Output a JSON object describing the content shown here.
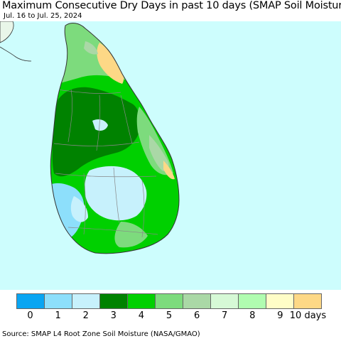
{
  "title": "Maximum Consecutive Dry Days in past 10 days (SMAP Soil Moisture)",
  "subtitle": "Jul. 16 to Jul. 25, 2024",
  "source": "Source: SMAP L4 Root Zone Soil Moisture (NASA/GMAO)",
  "colors": {
    "sea": "#cdfdfd",
    "land_border": "#333333",
    "district_border": "#888888",
    "indian_mainland": "#ffffff"
  },
  "legend": {
    "unit_suffix": "days",
    "ticks": [
      "0",
      "1",
      "2",
      "3",
      "4",
      "5",
      "6",
      "7",
      "8",
      "9",
      "10 days"
    ],
    "bins": [
      {
        "range": "0-1",
        "color": "#0aa5f2"
      },
      {
        "range": "1-2",
        "color": "#8ddffb"
      },
      {
        "range": "2-3",
        "color": "#c7f1fc"
      },
      {
        "range": "3-4",
        "color": "#008200"
      },
      {
        "range": "4-5",
        "color": "#00d000"
      },
      {
        "range": "5-6",
        "color": "#7ddb7d"
      },
      {
        "range": "6-7",
        "color": "#aad8a6"
      },
      {
        "range": "7-8",
        "color": "#d6f9d6"
      },
      {
        "range": "8-9",
        "color": "#b0fcb0"
      },
      {
        "range": "9-10",
        "color": "#fefdc7"
      },
      {
        "range": "10",
        "color": "#fdd886"
      }
    ]
  },
  "map": {
    "region": "Sri Lanka",
    "regions": [
      {
        "id": "north-jaffna",
        "days_bin": "5-6"
      },
      {
        "id": "north-east-coast",
        "days_bin": "10"
      },
      {
        "id": "north-central",
        "days_bin": "3-4"
      },
      {
        "id": "east-coast",
        "days_bin": "5-6"
      },
      {
        "id": "west-coast",
        "days_bin": "4-5"
      },
      {
        "id": "south-west",
        "days_bin": "1-2"
      },
      {
        "id": "central-highlands",
        "days_bin": "2-3"
      },
      {
        "id": "south",
        "days_bin": "4-5"
      }
    ]
  }
}
